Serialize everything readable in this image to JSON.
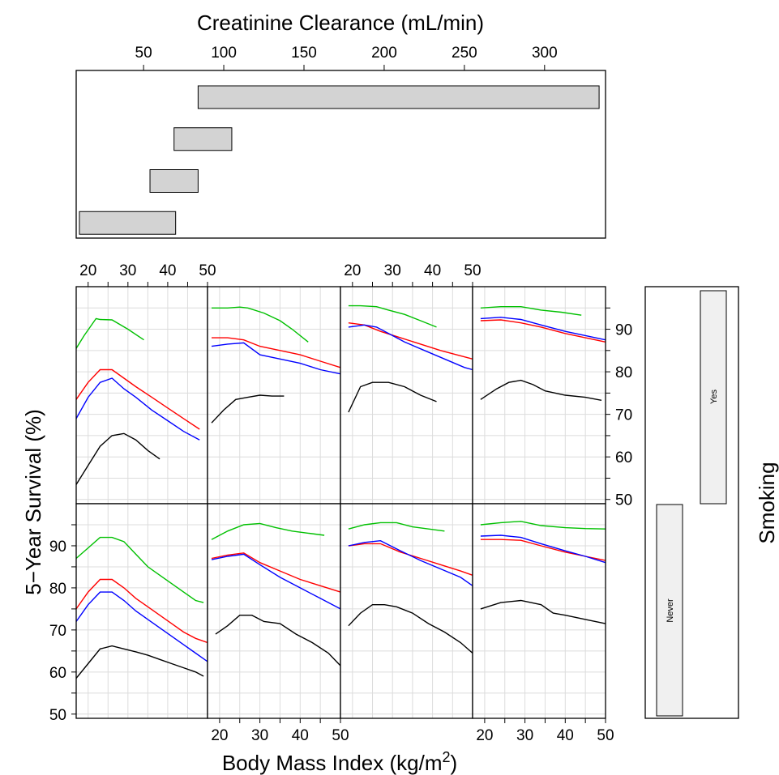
{
  "chart_data": {
    "type": "line",
    "xlabel": "Body Mass Index (kg/m",
    "xlabel_sup": "2",
    "xlabel_tail": ")",
    "ylabel": "5−Year Survival (%)",
    "x_ticks": [
      "20",
      "30",
      "40",
      "50"
    ],
    "y_ticks": [
      "50",
      "60",
      "70",
      "80",
      "90"
    ],
    "xlim": [
      17,
      50
    ],
    "ylim": [
      49,
      100
    ],
    "grid": true,
    "series_colors": [
      "#00c000",
      "#ff0000",
      "#0000ff",
      "#000000"
    ],
    "conditioning": {
      "creatinine": {
        "label": "Creatinine Clearance (mL/min)",
        "ticks": [
          "50",
          "100",
          "150",
          "200",
          "250",
          "300"
        ],
        "range": [
          8,
          338
        ],
        "intervals": [
          [
            84,
            334
          ],
          [
            69,
            105
          ],
          [
            54,
            84
          ],
          [
            10,
            70
          ]
        ]
      },
      "smoking": {
        "label": "Smoking",
        "levels": [
          "Never",
          "Yes"
        ]
      }
    },
    "panels": [
      {
        "row": "Yes",
        "col": 1,
        "series": [
          {
            "x": [
              17,
              19,
              22,
              23,
              26,
              30,
              34
            ],
            "y": [
              85.5,
              88.5,
              92.5,
              92.3,
              92.2,
              90,
              87.5
            ]
          },
          {
            "x": [
              17,
              20,
              23,
              26,
              29,
              32,
              36,
              40,
              44,
              48
            ],
            "y": [
              73.5,
              77.5,
              80.5,
              80.5,
              78.5,
              76.5,
              74,
              71.5,
              69,
              66.5
            ]
          },
          {
            "x": [
              17,
              20,
              23,
              26,
              29,
              32,
              36,
              40,
              44,
              48
            ],
            "y": [
              69,
              74,
              77.5,
              78.5,
              76,
              74,
              71,
              68.5,
              66,
              64
            ]
          },
          {
            "x": [
              17,
              20,
              23,
              26,
              29,
              32,
              35,
              38
            ],
            "y": [
              53.5,
              58,
              62.5,
              65,
              65.5,
              64,
              61.5,
              59.5
            ]
          }
        ]
      },
      {
        "row": "Yes",
        "col": 2,
        "series": [
          {
            "x": [
              18,
              22,
              25,
              27,
              31,
              35,
              38,
              42
            ],
            "y": [
              95,
              95,
              95.2,
              95,
              93.8,
              92,
              90,
              87
            ]
          },
          {
            "x": [
              18,
              22,
              26,
              30,
              35,
              40,
              45,
              50
            ],
            "y": [
              88,
              88,
              87.5,
              86,
              85,
              84,
              82.5,
              81
            ]
          },
          {
            "x": [
              18,
              22,
              26,
              30,
              35,
              40,
              45,
              50
            ],
            "y": [
              86,
              86.5,
              86.8,
              84,
              83,
              82,
              80.5,
              79.5
            ]
          },
          {
            "x": [
              18,
              21,
              24,
              27,
              30,
              33,
              36
            ],
            "y": [
              68,
              71,
              73.5,
              74,
              74.5,
              74.3,
              74.3
            ]
          }
        ]
      },
      {
        "row": "Yes",
        "col": 3,
        "series": [
          {
            "x": [
              19,
              22,
              26,
              29,
              33,
              37,
              41
            ],
            "y": [
              95.5,
              95.5,
              95.3,
              94.5,
              93.5,
              92,
              90.5
            ]
          },
          {
            "x": [
              19,
              23,
              27,
              32,
              37,
              42,
              46,
              50
            ],
            "y": [
              91.5,
              91,
              89.5,
              88,
              86.5,
              85,
              84,
              83
            ]
          },
          {
            "x": [
              19,
              23,
              26,
              29,
              33,
              38,
              43,
              48,
              50
            ],
            "y": [
              90.5,
              91,
              90.5,
              89,
              87,
              85,
              83,
              81,
              80.5
            ]
          },
          {
            "x": [
              19,
              22,
              25,
              29,
              33,
              37,
              41
            ],
            "y": [
              70.5,
              76.5,
              77.5,
              77.5,
              76.5,
              74.5,
              73
            ]
          }
        ]
      },
      {
        "row": "Yes",
        "col": 4,
        "series": [
          {
            "x": [
              19,
              24,
              29,
              34,
              39,
              44
            ],
            "y": [
              95,
              95.3,
              95.3,
              94.5,
              94,
              93.3
            ]
          },
          {
            "x": [
              19,
              24,
              29,
              34,
              40,
              45,
              50
            ],
            "y": [
              92,
              92.2,
              91.5,
              90.5,
              89,
              88,
              87
            ]
          },
          {
            "x": [
              19,
              24,
              29,
              34,
              40,
              45,
              50
            ],
            "y": [
              92.5,
              92.8,
              92.3,
              91,
              89.5,
              88.5,
              87.5
            ]
          },
          {
            "x": [
              19,
              23,
              26,
              29,
              32,
              35,
              40,
              45,
              49
            ],
            "y": [
              73.5,
              76,
              77.5,
              78,
              77,
              75.5,
              74.5,
              74,
              73.3
            ]
          }
        ]
      },
      {
        "row": "Never",
        "col": 1,
        "series": [
          {
            "x": [
              17,
              20,
              23,
              26,
              29,
              32,
              35,
              38,
              41,
              44,
              47,
              49
            ],
            "y": [
              87,
              89.5,
              92,
              92,
              91,
              88,
              85,
              83,
              81,
              79,
              77,
              76.5
            ]
          },
          {
            "x": [
              17,
              20,
              23,
              26,
              29,
              32,
              35,
              38,
              41,
              44,
              47,
              50
            ],
            "y": [
              75,
              79,
              82,
              82,
              80,
              77.5,
              75.5,
              73.5,
              71.5,
              69.5,
              68,
              67
            ]
          },
          {
            "x": [
              17,
              20,
              23,
              26,
              29,
              32,
              35,
              38,
              41,
              44,
              47,
              50
            ],
            "y": [
              72,
              76,
              79,
              79,
              77,
              74.5,
              72.5,
              70.5,
              68.5,
              66.5,
              64.5,
              62.5
            ]
          },
          {
            "x": [
              17,
              20,
              23,
              26,
              29,
              32,
              35,
              38,
              41,
              44,
              47,
              49
            ],
            "y": [
              58.5,
              62,
              65.5,
              66.2,
              65.5,
              64.8,
              64,
              63,
              62,
              61,
              60,
              59
            ]
          }
        ]
      },
      {
        "row": "Never",
        "col": 2,
        "series": [
          {
            "x": [
              18,
              22,
              26,
              30,
              34,
              38,
              42,
              46
            ],
            "y": [
              91.5,
              93.5,
              95,
              95.3,
              94.3,
              93.5,
              93,
              92.5
            ]
          },
          {
            "x": [
              18,
              22,
              26,
              30,
              35,
              40,
              45,
              50
            ],
            "y": [
              87,
              87.8,
              88.3,
              86,
              84,
              82,
              80.5,
              79
            ]
          },
          {
            "x": [
              18,
              22,
              26,
              30,
              35,
              40,
              45,
              50
            ],
            "y": [
              86.7,
              87.5,
              88,
              85.5,
              82.5,
              80,
              77.5,
              75
            ]
          },
          {
            "x": [
              19,
              22,
              25,
              28,
              31,
              35,
              39,
              43,
              47,
              50
            ],
            "y": [
              69,
              71,
              73.5,
              73.5,
              72,
              71.5,
              69,
              67,
              64.5,
              61.5
            ]
          }
        ]
      },
      {
        "row": "Never",
        "col": 3,
        "series": [
          {
            "x": [
              19,
              23,
              27,
              31,
              35,
              39,
              43
            ],
            "y": [
              94,
              95,
              95.5,
              95.5,
              94.5,
              94,
              93.5
            ]
          },
          {
            "x": [
              19,
              23,
              27,
              32,
              37,
              42,
              47,
              50
            ],
            "y": [
              90,
              90.5,
              90.5,
              88.5,
              87,
              85.5,
              84,
              83
            ]
          },
          {
            "x": [
              19,
              23,
              27,
              32,
              37,
              42,
              47,
              50
            ],
            "y": [
              90,
              90.8,
              91.2,
              88.8,
              86.5,
              84.5,
              82.5,
              80.5
            ]
          },
          {
            "x": [
              19,
              22,
              25,
              28,
              31,
              35,
              39,
              43,
              47,
              50
            ],
            "y": [
              71,
              74,
              76,
              76,
              75.5,
              74,
              71.5,
              69.5,
              67,
              64.5
            ]
          }
        ]
      },
      {
        "row": "Never",
        "col": 4,
        "series": [
          {
            "x": [
              19,
              24,
              29,
              34,
              40,
              45,
              50
            ],
            "y": [
              95,
              95.5,
              95.8,
              94.8,
              94.3,
              94.1,
              94
            ]
          },
          {
            "x": [
              19,
              24,
              29,
              34,
              40,
              45,
              50
            ],
            "y": [
              91.5,
              91.5,
              91.3,
              90,
              88.5,
              87.5,
              86.5
            ]
          },
          {
            "x": [
              19,
              24,
              29,
              34,
              40,
              45,
              50
            ],
            "y": [
              92.3,
              92.5,
              92,
              90.5,
              88.8,
              87.5,
              86
            ]
          },
          {
            "x": [
              19,
              24,
              29,
              34,
              37,
              40,
              45,
              50
            ],
            "y": [
              75,
              76.5,
              77,
              76,
              74,
              73.5,
              72.5,
              71.5
            ]
          }
        ]
      }
    ]
  }
}
